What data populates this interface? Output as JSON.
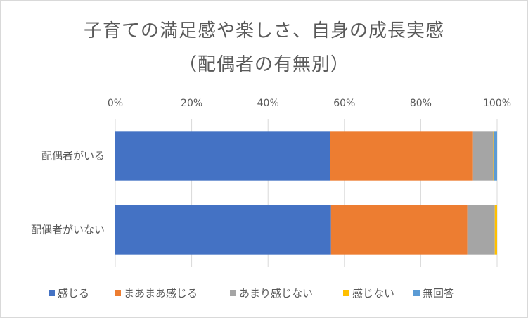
{
  "chart_data": {
    "type": "bar",
    "orientation": "horizontal",
    "stacked": "percent",
    "title": "子育ての満足感や楽しさ、自身の成長実感",
    "subtitle": "（配偶者の有無別）",
    "categories": [
      "配偶者がいる",
      "配偶者がいない"
    ],
    "series": [
      {
        "name": "感じる",
        "color": "#4472c4",
        "values": [
          56.3,
          56.5
        ]
      },
      {
        "name": "まあまあ感じる",
        "color": "#ed7d31",
        "values": [
          37.4,
          35.7
        ]
      },
      {
        "name": "あまり感じない",
        "color": "#a5a5a5",
        "values": [
          5.3,
          7.2
        ]
      },
      {
        "name": "感じない",
        "color": "#ffc000",
        "values": [
          0.2,
          0.6
        ]
      },
      {
        "name": "無回答",
        "color": "#5b9bd5",
        "values": [
          0.8,
          0.0
        ]
      }
    ],
    "xlim": [
      0,
      100
    ],
    "x_ticks": [
      "0%",
      "20%",
      "40%",
      "60%",
      "80%",
      "100%"
    ],
    "grid": true,
    "legend_position": "bottom"
  }
}
